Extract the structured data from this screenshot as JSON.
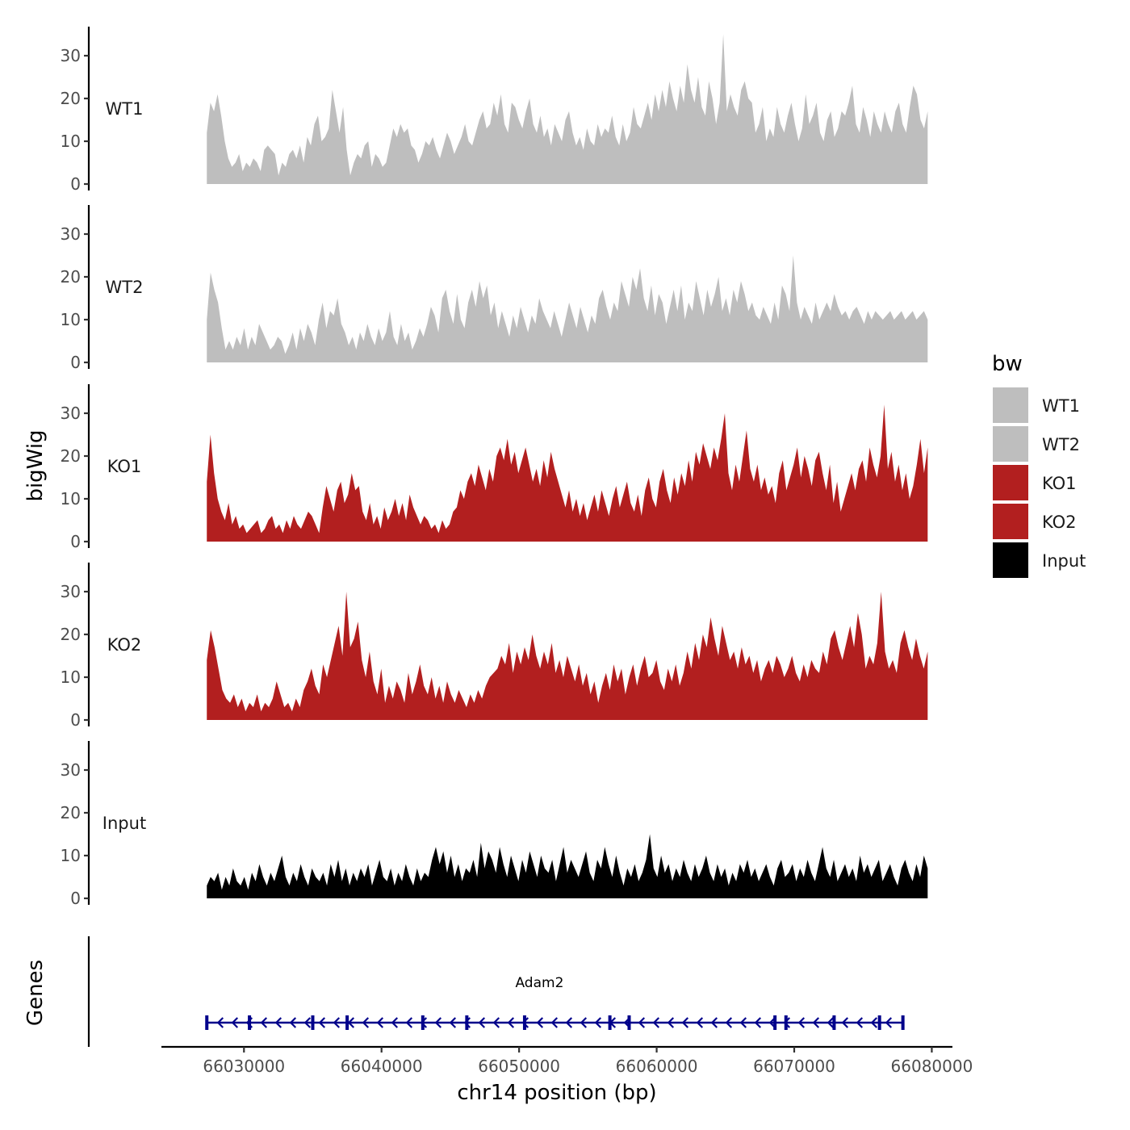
{
  "chart_data": {
    "type": "area",
    "ylabel": "bigWig",
    "xlabel": "chr14 position (bp)",
    "xlim": [
      66024000,
      66081500
    ],
    "data_range": [
      66027300,
      66079700
    ],
    "ylim": [
      0,
      37
    ],
    "yticks": [
      0,
      10,
      20,
      30
    ],
    "xticks": [
      66030000,
      66040000,
      66050000,
      66060000,
      66070000,
      66080000
    ],
    "xtick_labels": [
      "66030000",
      "66040000",
      "66050000",
      "66060000",
      "66070000",
      "66080000"
    ],
    "ytick_labels": [
      "0",
      "10",
      "20",
      "30"
    ],
    "legend": {
      "title": "bw",
      "position": "right",
      "entries": [
        {
          "label": "WT1",
          "color": "#BEBEBE"
        },
        {
          "label": "WT2",
          "color": "#BEBEBE"
        },
        {
          "label": "KO1",
          "color": "#B21F1F"
        },
        {
          "label": "KO2",
          "color": "#B21F1F"
        },
        {
          "label": "Input",
          "color": "#000000"
        }
      ]
    },
    "series": [
      {
        "name": "WT1",
        "color": "#BEBEBE",
        "values": [
          12,
          19,
          17,
          21,
          16,
          10,
          6,
          4,
          5,
          7,
          3,
          5,
          4,
          6,
          5,
          3,
          8,
          9,
          8,
          7,
          2,
          5,
          4,
          7,
          8,
          6,
          9,
          5,
          11,
          9,
          14,
          16,
          10,
          11,
          13,
          22,
          17,
          12,
          18,
          8,
          2,
          5,
          7,
          6,
          9,
          10,
          4,
          7,
          6,
          4,
          5,
          9,
          13,
          11,
          14,
          12,
          13,
          9,
          8,
          5,
          7,
          10,
          9,
          11,
          8,
          6,
          9,
          12,
          10,
          7,
          9,
          11,
          14,
          10,
          9,
          12,
          15,
          17,
          13,
          14,
          19,
          16,
          21,
          14,
          12,
          19,
          18,
          15,
          13,
          17,
          20,
          14,
          12,
          16,
          11,
          13,
          9,
          14,
          12,
          10,
          15,
          17,
          12,
          9,
          11,
          8,
          13,
          10,
          9,
          14,
          11,
          13,
          12,
          16,
          11,
          9,
          14,
          10,
          12,
          18,
          14,
          13,
          16,
          19,
          15,
          21,
          17,
          22,
          18,
          24,
          20,
          17,
          23,
          19,
          28,
          22,
          19,
          25,
          18,
          16,
          24,
          20,
          14,
          19,
          35,
          17,
          21,
          18,
          16,
          22,
          24,
          20,
          19,
          12,
          14,
          18,
          10,
          13,
          11,
          18,
          14,
          12,
          16,
          19,
          14,
          10,
          13,
          21,
          14,
          16,
          19,
          12,
          10,
          15,
          17,
          11,
          13,
          17,
          16,
          19,
          23,
          14,
          12,
          18,
          15,
          11,
          17,
          14,
          12,
          17,
          14,
          12,
          17,
          19,
          14,
          12,
          18,
          23,
          21,
          15,
          13,
          17
        ]
      },
      {
        "name": "WT2",
        "color": "#BEBEBE",
        "values": [
          10,
          21,
          17,
          14,
          8,
          3,
          5,
          3,
          6,
          4,
          8,
          3,
          6,
          4,
          9,
          7,
          5,
          3,
          4,
          6,
          5,
          2,
          4,
          7,
          3,
          8,
          5,
          9,
          7,
          4,
          10,
          14,
          8,
          12,
          11,
          15,
          9,
          7,
          4,
          6,
          3,
          7,
          5,
          9,
          6,
          4,
          8,
          5,
          7,
          12,
          6,
          4,
          9,
          5,
          7,
          3,
          5,
          8,
          6,
          9,
          13,
          11,
          7,
          15,
          17,
          12,
          9,
          16,
          10,
          8,
          14,
          17,
          13,
          19,
          15,
          18,
          11,
          14,
          8,
          12,
          9,
          6,
          11,
          8,
          13,
          10,
          7,
          11,
          9,
          15,
          12,
          10,
          8,
          12,
          9,
          6,
          10,
          14,
          11,
          8,
          13,
          10,
          7,
          11,
          9,
          15,
          17,
          13,
          10,
          14,
          12,
          19,
          16,
          13,
          20,
          17,
          22,
          15,
          12,
          18,
          11,
          16,
          14,
          9,
          13,
          17,
          12,
          18,
          10,
          14,
          12,
          19,
          15,
          11,
          17,
          13,
          16,
          20,
          12,
          15,
          11,
          17,
          14,
          19,
          16,
          12,
          14,
          11,
          10,
          13,
          11,
          9,
          14,
          10,
          18,
          16,
          12,
          25,
          14,
          10,
          13,
          11,
          9,
          14,
          10,
          12,
          14,
          12,
          16,
          13,
          11,
          12,
          10,
          12,
          13,
          11,
          9,
          12,
          10,
          12,
          11,
          10,
          11,
          12,
          10,
          11,
          12,
          10,
          11,
          12,
          10,
          11,
          12,
          10
        ]
      },
      {
        "name": "KO1",
        "color": "#B21F1F",
        "values": [
          14,
          25,
          16,
          10,
          7,
          5,
          9,
          4,
          6,
          3,
          4,
          2,
          3,
          4,
          5,
          2,
          3,
          5,
          6,
          3,
          4,
          2,
          5,
          3,
          6,
          4,
          3,
          5,
          7,
          6,
          4,
          2,
          8,
          13,
          10,
          7,
          12,
          14,
          9,
          11,
          16,
          12,
          13,
          7,
          5,
          9,
          4,
          6,
          3,
          8,
          5,
          7,
          10,
          6,
          9,
          5,
          11,
          8,
          6,
          4,
          6,
          5,
          3,
          4,
          2,
          5,
          3,
          4,
          7,
          8,
          12,
          10,
          14,
          16,
          13,
          18,
          15,
          12,
          17,
          14,
          20,
          22,
          19,
          24,
          18,
          21,
          16,
          19,
          22,
          18,
          14,
          17,
          13,
          19,
          15,
          21,
          17,
          14,
          11,
          8,
          12,
          7,
          10,
          6,
          9,
          5,
          8,
          11,
          7,
          12,
          9,
          6,
          10,
          13,
          8,
          11,
          14,
          9,
          7,
          11,
          6,
          12,
          15,
          10,
          8,
          14,
          17,
          12,
          9,
          15,
          11,
          16,
          13,
          19,
          14,
          21,
          18,
          23,
          20,
          17,
          22,
          19,
          24,
          30,
          16,
          12,
          18,
          14,
          20,
          26,
          17,
          14,
          18,
          12,
          15,
          11,
          13,
          9,
          16,
          19,
          12,
          15,
          18,
          22,
          15,
          20,
          17,
          13,
          19,
          21,
          16,
          12,
          18,
          9,
          14,
          7,
          10,
          13,
          16,
          12,
          17,
          19,
          14,
          22,
          18,
          15,
          20,
          32,
          17,
          21,
          14,
          18,
          12,
          16,
          10,
          13,
          18,
          24,
          16,
          22
        ]
      },
      {
        "name": "KO2",
        "color": "#B21F1F",
        "values": [
          14,
          21,
          17,
          12,
          7,
          5,
          4,
          6,
          3,
          5,
          2,
          4,
          3,
          6,
          2,
          4,
          3,
          5,
          9,
          6,
          3,
          4,
          2,
          5,
          3,
          7,
          9,
          12,
          8,
          6,
          13,
          10,
          14,
          18,
          22,
          15,
          30,
          17,
          19,
          23,
          14,
          10,
          16,
          9,
          6,
          12,
          4,
          8,
          5,
          9,
          7,
          4,
          11,
          6,
          9,
          13,
          8,
          6,
          10,
          5,
          8,
          4,
          9,
          6,
          4,
          7,
          5,
          3,
          6,
          4,
          7,
          5,
          8,
          10,
          11,
          12,
          15,
          13,
          18,
          11,
          16,
          13,
          17,
          14,
          20,
          15,
          12,
          16,
          13,
          18,
          11,
          14,
          10,
          15,
          12,
          9,
          13,
          8,
          11,
          6,
          9,
          4,
          8,
          11,
          7,
          13,
          9,
          12,
          6,
          10,
          13,
          8,
          12,
          15,
          10,
          11,
          14,
          9,
          7,
          12,
          9,
          13,
          8,
          11,
          16,
          12,
          18,
          14,
          20,
          17,
          24,
          19,
          15,
          22,
          18,
          14,
          16,
          12,
          17,
          13,
          15,
          11,
          14,
          9,
          12,
          14,
          11,
          15,
          13,
          10,
          12,
          15,
          11,
          9,
          13,
          10,
          14,
          12,
          11,
          16,
          13,
          19,
          21,
          17,
          14,
          18,
          22,
          17,
          25,
          20,
          12,
          15,
          13,
          18,
          30,
          16,
          12,
          14,
          11,
          18,
          21,
          17,
          14,
          19,
          15,
          12,
          16
        ]
      },
      {
        "name": "Input",
        "color": "#000000",
        "values": [
          3,
          5,
          4,
          6,
          2,
          5,
          3,
          7,
          4,
          3,
          5,
          2,
          6,
          4,
          8,
          5,
          3,
          6,
          4,
          7,
          10,
          5,
          3,
          6,
          4,
          8,
          5,
          3,
          7,
          5,
          4,
          6,
          3,
          8,
          5,
          9,
          4,
          7,
          3,
          6,
          4,
          7,
          5,
          8,
          3,
          6,
          9,
          5,
          4,
          7,
          3,
          6,
          4,
          8,
          5,
          3,
          7,
          4,
          6,
          5,
          9,
          12,
          8,
          11,
          6,
          10,
          5,
          8,
          4,
          7,
          6,
          9,
          5,
          13,
          7,
          11,
          9,
          6,
          12,
          8,
          5,
          10,
          7,
          4,
          9,
          6,
          11,
          8,
          5,
          10,
          7,
          6,
          9,
          4,
          8,
          12,
          6,
          9,
          7,
          5,
          8,
          11,
          6,
          4,
          9,
          7,
          12,
          8,
          5,
          10,
          6,
          3,
          7,
          5,
          8,
          4,
          6,
          9,
          15,
          7,
          5,
          10,
          6,
          8,
          4,
          7,
          5,
          9,
          6,
          4,
          8,
          5,
          7,
          10,
          6,
          4,
          8,
          5,
          7,
          3,
          6,
          4,
          8,
          6,
          9,
          5,
          7,
          4,
          6,
          8,
          5,
          3,
          7,
          9,
          5,
          6,
          8,
          4,
          7,
          5,
          9,
          6,
          4,
          8,
          12,
          7,
          5,
          9,
          4,
          6,
          8,
          5,
          7,
          4,
          10,
          6,
          8,
          5,
          7,
          9,
          4,
          6,
          8,
          5,
          3,
          7,
          9,
          6,
          4,
          8,
          5,
          10,
          7
        ]
      }
    ],
    "genes": {
      "panel_label": "Genes",
      "color": "#00008B",
      "items": [
        {
          "name": "Adam2",
          "start": 66027300,
          "end": 66077900,
          "strand": "-",
          "exons": [
            66027300,
            66030400,
            66035000,
            66037500,
            66043000,
            66046200,
            66050400,
            66056600,
            66058000,
            66068600,
            66069400,
            66072900,
            66076200,
            66077900
          ]
        }
      ]
    }
  }
}
